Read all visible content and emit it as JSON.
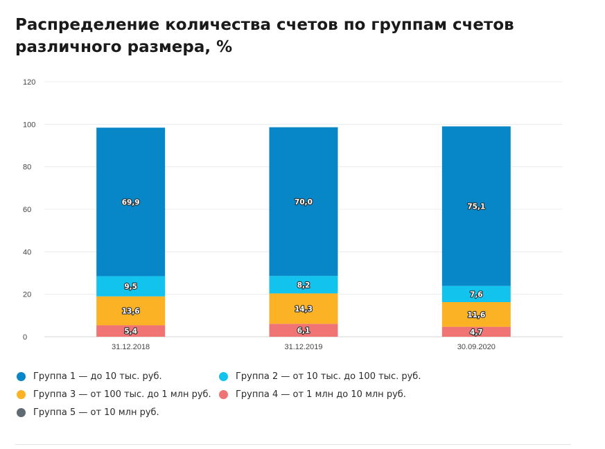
{
  "title": "Распределение количества счетов по группам счетов различного размера, %",
  "chart_data": {
    "type": "bar",
    "stacked": true,
    "categories": [
      "31.12.2018",
      "31.12.2019",
      "30.09.2020"
    ],
    "series": [
      {
        "name": "Группа 4 — от 1 млн до 10 млн руб.",
        "color": "#f07474",
        "values": [
          5.4,
          6.1,
          4.7
        ],
        "labels": [
          "5,4",
          "6,1",
          "4,7"
        ]
      },
      {
        "name": "Группа 3 — от 100 тыс. до 1 млн руб.",
        "color": "#fbb224",
        "values": [
          13.6,
          14.3,
          11.6
        ],
        "labels": [
          "13,6",
          "14,3",
          "11,6"
        ]
      },
      {
        "name": "Группа 2 — от 10 тыс. до 100 тыс. руб.",
        "color": "#12c4ed",
        "values": [
          9.5,
          8.2,
          7.6
        ],
        "labels": [
          "9,5",
          "8,2",
          "7,6"
        ]
      },
      {
        "name": "Группа 1 — до 10 тыс. руб.",
        "color": "#0787c8",
        "values": [
          69.9,
          70.0,
          75.1
        ],
        "labels": [
          "69,9",
          "70,0",
          "75,1"
        ]
      }
    ],
    "yticks": [
      0,
      20,
      40,
      60,
      80,
      100,
      120
    ],
    "ylim": [
      0,
      120
    ],
    "grid": true,
    "legend_position": "bottom"
  },
  "legend": [
    {
      "label": "Группа 1 — до 10 тыс. руб.",
      "color": "#0787c8"
    },
    {
      "label": "Группа 2 — от 10 тыс. до 100 тыс. руб.",
      "color": "#12c4ed"
    },
    {
      "label": "Группа 3 — от 100 тыс. до 1 млн руб.",
      "color": "#fbb224"
    },
    {
      "label": "Группа 4 — от 1 млн до 10 млн руб.",
      "color": "#f07474"
    },
    {
      "label": "Группа 5 — от 10 млн руб.",
      "color": "#5f6a74"
    }
  ]
}
